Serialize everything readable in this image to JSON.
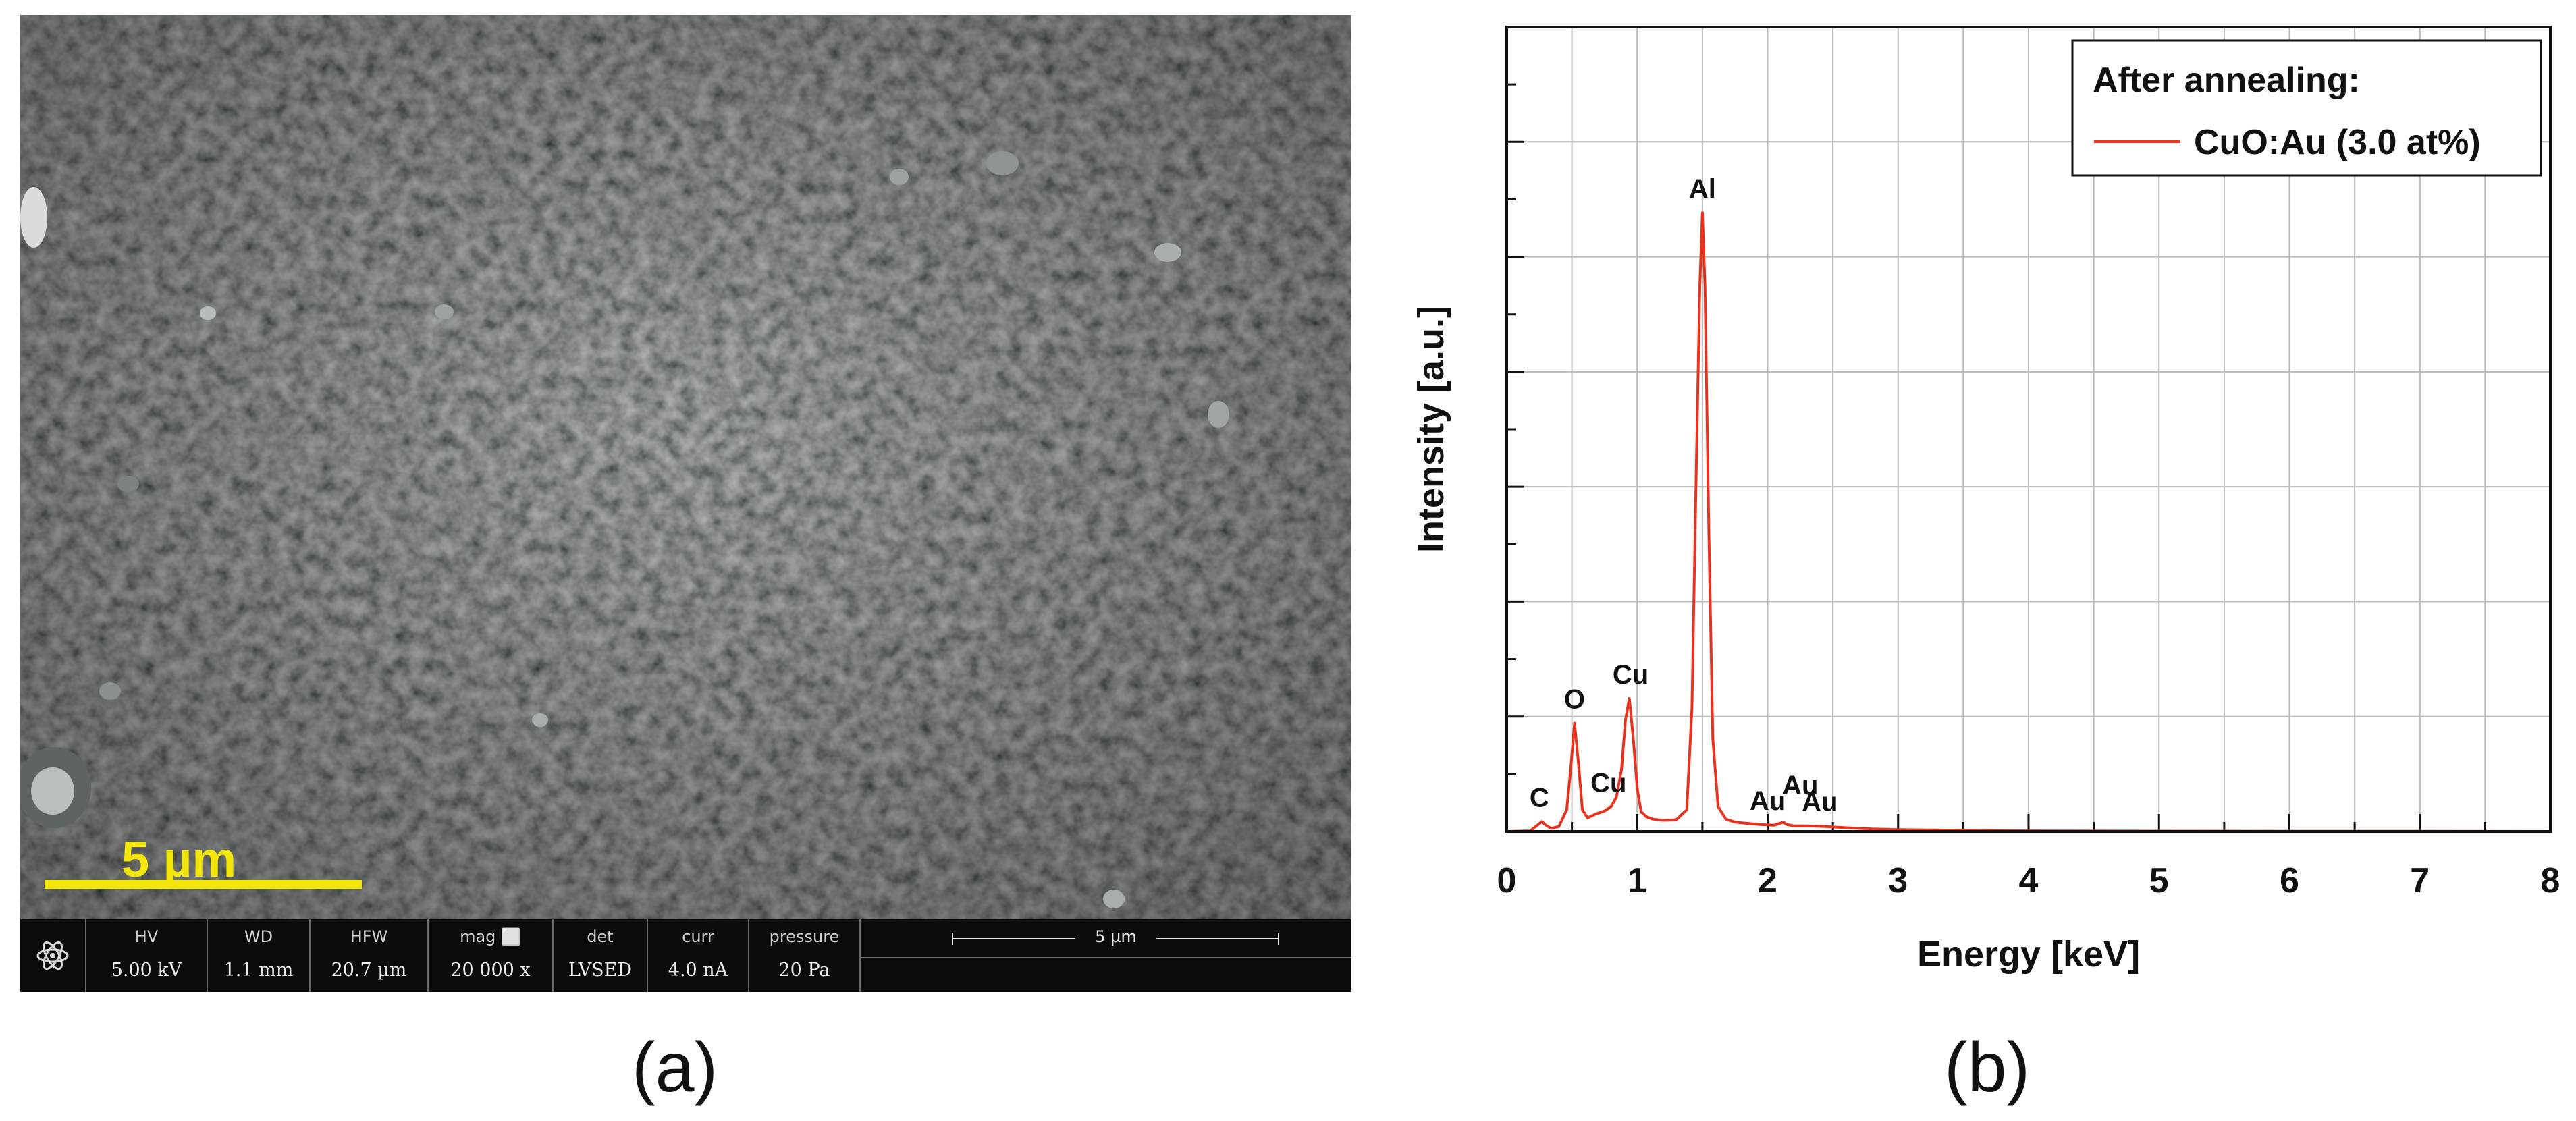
{
  "panel_a": {
    "scale_bar_label": "5 µm",
    "databar": {
      "cells": [
        {
          "label": "HV",
          "value": "5.00 kV"
        },
        {
          "label": "WD",
          "value": "1.1 mm"
        },
        {
          "label": "HFW",
          "value": "20.7 µm"
        },
        {
          "label": "mag ⬜",
          "value": "20 000 x"
        },
        {
          "label": "det",
          "value": "LVSED"
        },
        {
          "label": "curr",
          "value": "4.0 nA"
        },
        {
          "label": "pressure",
          "value": "20 Pa"
        }
      ],
      "scale_text": "5 µm"
    },
    "caption": "(a)"
  },
  "panel_b": {
    "caption": "(b)",
    "chart_data": {
      "type": "line",
      "xlabel": "Energy [keV]",
      "ylabel": "Intensity [a.u.]",
      "xlim": [
        0,
        8
      ],
      "ylim": [
        0,
        100
      ],
      "x_ticks": [
        0,
        1,
        2,
        3,
        4,
        5,
        6,
        7,
        8
      ],
      "grid": true,
      "legend": {
        "placement": "top-right",
        "title": "After annealing:",
        "entries": [
          {
            "name": "CuO:Au (3.0 at%)",
            "color": "#e8321e"
          }
        ]
      },
      "series": [
        {
          "name": "CuO:Au (3.0 at%)",
          "color": "#e8321e",
          "x": [
            0,
            0.18,
            0.24,
            0.27,
            0.3,
            0.34,
            0.4,
            0.46,
            0.49,
            0.52,
            0.55,
            0.58,
            0.62,
            0.68,
            0.75,
            0.8,
            0.84,
            0.88,
            0.91,
            0.94,
            0.97,
            1.0,
            1.03,
            1.07,
            1.12,
            1.2,
            1.3,
            1.38,
            1.42,
            1.45,
            1.48,
            1.5,
            1.52,
            1.55,
            1.58,
            1.62,
            1.68,
            1.75,
            1.85,
            1.95,
            2.05,
            2.12,
            2.15,
            2.2,
            2.3,
            2.45,
            2.6,
            2.8,
            3.0,
            3.5,
            4.0,
            5.0,
            6.0,
            7.0,
            8.0
          ],
          "y": [
            0,
            0.1,
            1.1,
            1.6,
            1.0,
            0.5,
            0.8,
            3.5,
            10.0,
            17.5,
            11.0,
            3.5,
            2.2,
            2.8,
            3.3,
            4.0,
            5.5,
            10.0,
            18.0,
            21.5,
            15.0,
            7.0,
            3.2,
            2.4,
            2.0,
            1.8,
            1.9,
            3.5,
            20.0,
            55.0,
            88.0,
            100.0,
            88.0,
            48.0,
            15.0,
            4.0,
            2.0,
            1.5,
            1.3,
            1.1,
            1.0,
            1.5,
            1.1,
            0.9,
            0.9,
            0.8,
            0.6,
            0.4,
            0.3,
            0.2,
            0.1,
            0.05,
            0.03,
            0.02,
            0.0
          ]
        }
      ],
      "annotations": [
        {
          "text": "C",
          "x": 0.25,
          "y": 1.6
        },
        {
          "text": "O",
          "x": 0.52,
          "y": 17.5
        },
        {
          "text": "Cu",
          "x": 0.78,
          "y": 4.0
        },
        {
          "text": "Cu",
          "x": 0.95,
          "y": 21.5
        },
        {
          "text": "Al",
          "x": 1.5,
          "y": 100.0
        },
        {
          "text": "Au",
          "x": 2.0,
          "y": 1.1
        },
        {
          "text": "Au",
          "x": 2.25,
          "y": 3.6
        },
        {
          "text": "Au",
          "x": 2.4,
          "y": 0.9
        }
      ]
    }
  }
}
